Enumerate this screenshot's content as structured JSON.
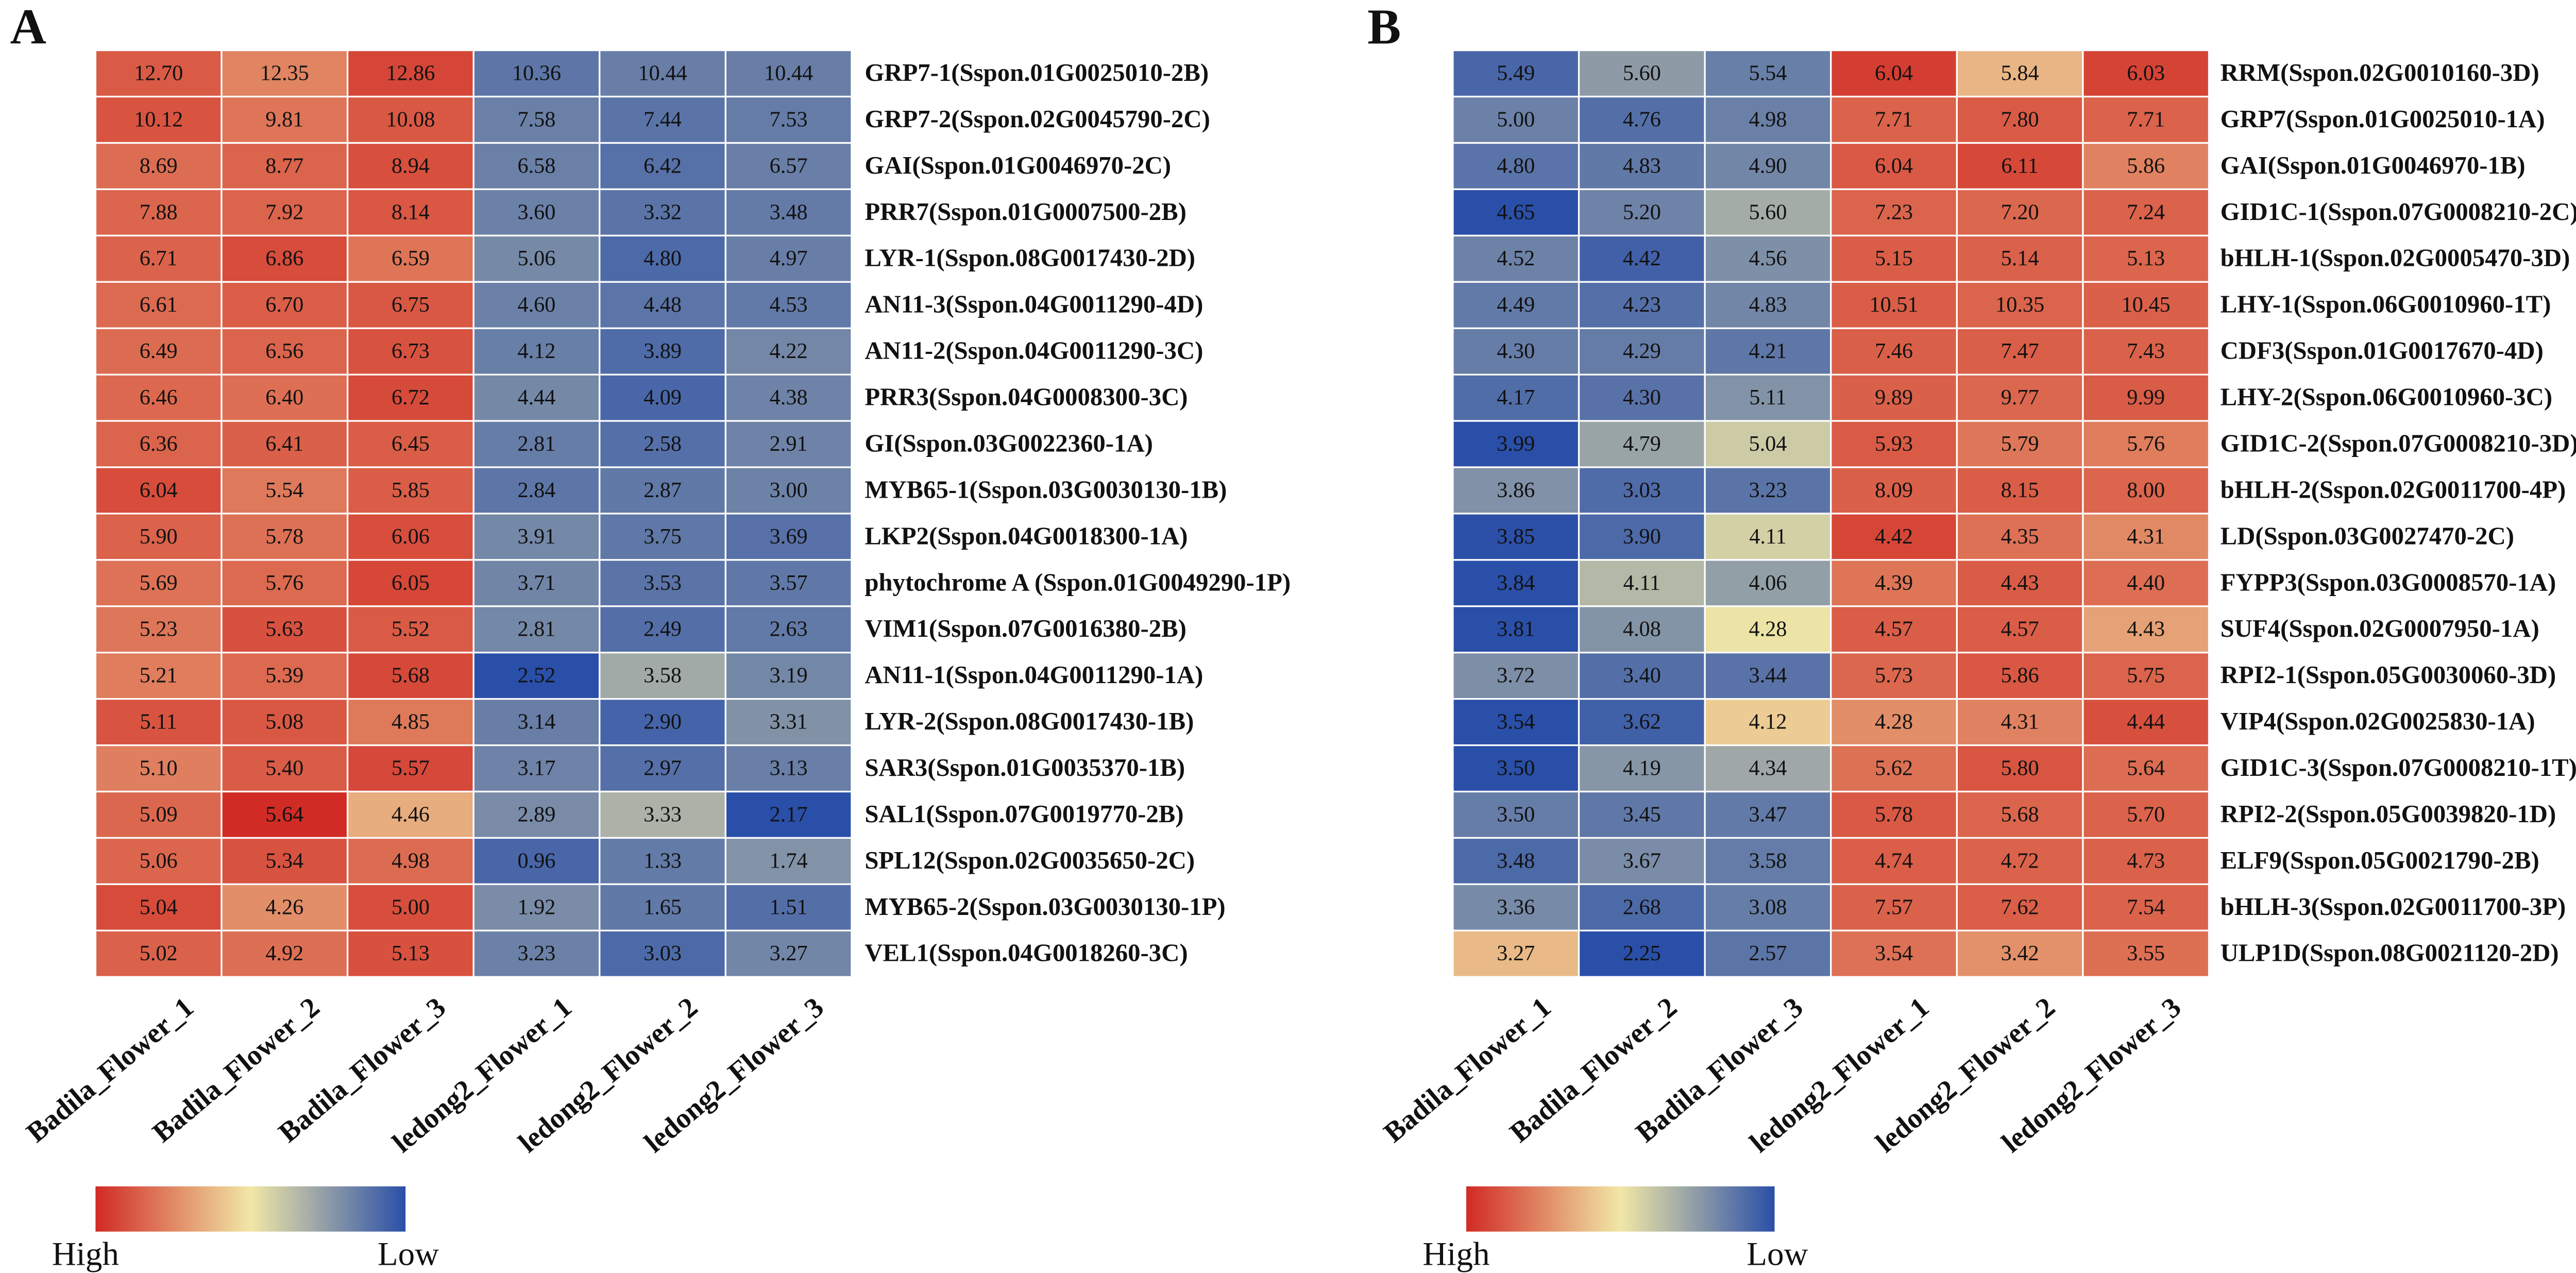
{
  "chart_data": [
    {
      "type": "heatmap",
      "panel_label": "A",
      "columns": [
        "Badila_Flower_1",
        "Badila_Flower_2",
        "Badila_Flower_3",
        "ledong2_Flower_1",
        "ledong2_Flower_2",
        "ledong2_Flower_3"
      ],
      "rows": [
        "GRP7-1(Sspon.01G0025010-2B)",
        "GRP7-2(Sspon.02G0045790-2C)",
        "GAI(Sspon.01G0046970-2C)",
        "PRR7(Sspon.01G0007500-2B)",
        "LYR-1(Sspon.08G0017430-2D)",
        "AN11-3(Sspon.04G0011290-4D)",
        "AN11-2(Sspon.04G0011290-3C)",
        "PRR3(Sspon.04G0008300-3C)",
        "GI(Sspon.03G0022360-1A)",
        "MYB65-1(Sspon.03G0030130-1B)",
        "LKP2(Sspon.04G0018300-1A)",
        "phytochrome A (Sspon.01G0049290-1P)",
        "VIM1(Sspon.07G0016380-2B)",
        "AN11-1(Sspon.04G0011290-1A)",
        "LYR-2(Sspon.08G0017430-1B)",
        "SAR3(Sspon.01G0035370-1B)",
        "SAL1(Sspon.07G0019770-2B)",
        "SPL12(Sspon.02G0035650-2C)",
        "MYB65-2(Sspon.03G0030130-1P)",
        "VEL1(Sspon.04G0018260-3C)"
      ],
      "values": [
        [
          12.7,
          12.35,
          12.86,
          10.36,
          10.44,
          10.44
        ],
        [
          10.12,
          9.81,
          10.08,
          7.58,
          7.44,
          7.53
        ],
        [
          8.69,
          8.77,
          8.94,
          6.58,
          6.42,
          6.57
        ],
        [
          7.88,
          7.92,
          8.14,
          3.6,
          3.32,
          3.48
        ],
        [
          6.71,
          6.86,
          6.59,
          5.06,
          4.8,
          4.97
        ],
        [
          6.61,
          6.7,
          6.75,
          4.6,
          4.48,
          4.53
        ],
        [
          6.49,
          6.56,
          6.73,
          4.12,
          3.89,
          4.22
        ],
        [
          6.46,
          6.4,
          6.72,
          4.44,
          4.09,
          4.38
        ],
        [
          6.36,
          6.41,
          6.45,
          2.81,
          2.58,
          2.91
        ],
        [
          6.04,
          5.54,
          5.85,
          2.84,
          2.87,
          3
        ],
        [
          5.9,
          5.78,
          6.06,
          3.91,
          3.75,
          3.69
        ],
        [
          5.69,
          5.76,
          6.05,
          3.71,
          3.53,
          3.57
        ],
        [
          5.23,
          5.63,
          5.52,
          2.81,
          2.49,
          2.63
        ],
        [
          5.21,
          5.39,
          5.68,
          2.52,
          3.58,
          3.19
        ],
        [
          5.11,
          5.08,
          4.85,
          3.14,
          2.9,
          3.31
        ],
        [
          5.1,
          5.4,
          5.57,
          3.17,
          2.97,
          3.13
        ],
        [
          5.09,
          5.64,
          4.46,
          2.89,
          3.33,
          2.17
        ],
        [
          5.06,
          5.34,
          4.98,
          0.96,
          1.33,
          1.74
        ],
        [
          5.04,
          4.26,
          5,
          1.92,
          1.65,
          1.51
        ],
        [
          5.02,
          4.92,
          5.13,
          3.23,
          3.03,
          3.27
        ]
      ],
      "value_labels": [
        [
          "12.70",
          "12.35",
          "12.86",
          "10.36",
          "10.44",
          "10.44"
        ],
        [
          "10.12",
          "9.81",
          "10.08",
          "7.58",
          "7.44",
          "7.53"
        ],
        [
          "8.69",
          "8.77",
          "8.94",
          "6.58",
          "6.42",
          "6.57"
        ],
        [
          "7.88",
          "7.92",
          "8.14",
          "3.60",
          "3.32",
          "3.48"
        ],
        [
          "6.71",
          "6.86",
          "6.59",
          "5.06",
          "4.80",
          "4.97"
        ],
        [
          "6.61",
          "6.70",
          "6.75",
          "4.60",
          "4.48",
          "4.53"
        ],
        [
          "6.49",
          "6.56",
          "6.73",
          "4.12",
          "3.89",
          "4.22"
        ],
        [
          "6.46",
          "6.40",
          "6.72",
          "4.44",
          "4.09",
          "4.38"
        ],
        [
          "6.36",
          "6.41",
          "6.45",
          "2.81",
          "2.58",
          "2.91"
        ],
        [
          "6.04",
          "5.54",
          "5.85",
          "2.84",
          "2.87",
          "3.00"
        ],
        [
          "5.90",
          "5.78",
          "6.06",
          "3.91",
          "3.75",
          "3.69"
        ],
        [
          "5.69",
          "5.76",
          "6.05",
          "3.71",
          "3.53",
          "3.57"
        ],
        [
          "5.23",
          "5.63",
          "5.52",
          "2.81",
          "2.49",
          "2.63"
        ],
        [
          "5.21",
          "5.39",
          "5.68",
          "2.52",
          "3.58",
          "3.19"
        ],
        [
          "5.11",
          "5.08",
          "4.85",
          "3.14",
          "2.90",
          "3.31"
        ],
        [
          "5.10",
          "5.40",
          "5.57",
          "3.17",
          "2.97",
          "3.13"
        ],
        [
          "5.09",
          "5.64",
          "4.46",
          "2.89",
          "3.33",
          "2.17"
        ],
        [
          "5.06",
          "5.34",
          "4.98",
          "0.96",
          "1.33",
          "1.74"
        ],
        [
          "5.04",
          "4.26",
          "5.00",
          "1.92",
          "1.65",
          "1.51"
        ],
        [
          "5.02",
          "4.92",
          "5.13",
          "3.23",
          "3.03",
          "3.27"
        ]
      ],
      "colormap": [
        "#d12a24",
        "#f1e7a6",
        "#2a4fa8"
      ],
      "colorbar_high": "High",
      "colorbar_low": "Low"
    },
    {
      "type": "heatmap",
      "panel_label": "B",
      "columns": [
        "Badila_Flower_1",
        "Badila_Flower_2",
        "Badila_Flower_3",
        "ledong2_Flower_1",
        "ledong2_Flower_2",
        "ledong2_Flower_3"
      ],
      "rows": [
        "RRM(Sspon.02G0010160-3D)",
        "GRP7(Sspon.01G0025010-1A)",
        "GAI(Sspon.01G0046970-1B)",
        "GID1C-1(Sspon.07G0008210-2C)",
        "bHLH-1(Sspon.02G0005470-3D)",
        "LHY-1(Sspon.06G0010960-1T)",
        "CDF3(Sspon.01G0017670-4D)",
        "LHY-2(Sspon.06G0010960-3C)",
        "GID1C-2(Sspon.07G0008210-3D)",
        "bHLH-2(Sspon.02G0011700-4P)",
        "LD(Sspon.03G0027470-2C)",
        "FYPP3(Sspon.03G0008570-1A)",
        "SUF4(Sspon.02G0007950-1A)",
        "RPI2-1(Sspon.05G0030060-3D)",
        "VIP4(Sspon.02G0025830-1A)",
        "GID1C-3(Sspon.07G0008210-1T)",
        "RPI2-2(Sspon.05G0039820-1D)",
        "ELF9(Sspon.05G0021790-2B)",
        "bHLH-3(Sspon.02G0011700-3P)",
        "ULP1D(Sspon.08G0021120-2D)"
      ],
      "values": [
        [
          5.49,
          5.6,
          5.54,
          6.04,
          5.84,
          6.03
        ],
        [
          5,
          4.76,
          4.98,
          7.71,
          7.8,
          7.71
        ],
        [
          4.8,
          4.83,
          4.9,
          6.04,
          6.11,
          5.86
        ],
        [
          4.65,
          5.2,
          5.6,
          7.23,
          7.2,
          7.24
        ],
        [
          4.52,
          4.42,
          4.56,
          5.15,
          5.14,
          5.13
        ],
        [
          4.49,
          4.23,
          4.83,
          10.51,
          10.35,
          10.45
        ],
        [
          4.3,
          4.29,
          4.21,
          7.46,
          7.47,
          7.43
        ],
        [
          4.17,
          4.3,
          5.11,
          9.89,
          9.77,
          9.99
        ],
        [
          3.99,
          4.79,
          5.04,
          5.93,
          5.79,
          5.76
        ],
        [
          3.86,
          3.03,
          3.23,
          8.09,
          8.15,
          8
        ],
        [
          3.85,
          3.9,
          4.11,
          4.42,
          4.35,
          4.31
        ],
        [
          3.84,
          4.11,
          4.06,
          4.39,
          4.43,
          4.4
        ],
        [
          3.81,
          4.08,
          4.28,
          4.57,
          4.57,
          4.43
        ],
        [
          3.72,
          3.4,
          3.44,
          5.73,
          5.86,
          5.75
        ],
        [
          3.54,
          3.62,
          4.12,
          4.28,
          4.31,
          4.44
        ],
        [
          3.5,
          4.19,
          4.34,
          5.62,
          5.8,
          5.64
        ],
        [
          3.5,
          3.45,
          3.47,
          5.78,
          5.68,
          5.7
        ],
        [
          3.48,
          3.67,
          3.58,
          4.74,
          4.72,
          4.73
        ],
        [
          3.36,
          2.68,
          3.08,
          7.57,
          7.62,
          7.54
        ],
        [
          3.27,
          2.25,
          2.57,
          3.54,
          3.42,
          3.55
        ]
      ],
      "value_labels": [
        [
          "5.49",
          "5.60",
          "5.54",
          "6.04",
          "5.84",
          "6.03"
        ],
        [
          "5.00",
          "4.76",
          "4.98",
          "7.71",
          "7.80",
          "7.71"
        ],
        [
          "4.80",
          "4.83",
          "4.90",
          "6.04",
          "6.11",
          "5.86"
        ],
        [
          "4.65",
          "5.20",
          "5.60",
          "7.23",
          "7.20",
          "7.24"
        ],
        [
          "4.52",
          "4.42",
          "4.56",
          "5.15",
          "5.14",
          "5.13"
        ],
        [
          "4.49",
          "4.23",
          "4.83",
          "10.51",
          "10.35",
          "10.45"
        ],
        [
          "4.30",
          "4.29",
          "4.21",
          "7.46",
          "7.47",
          "7.43"
        ],
        [
          "4.17",
          "4.30",
          "5.11",
          "9.89",
          "9.77",
          "9.99"
        ],
        [
          "3.99",
          "4.79",
          "5.04",
          "5.93",
          "5.79",
          "5.76"
        ],
        [
          "3.86",
          "3.03",
          "3.23",
          "8.09",
          "8.15",
          "8.00"
        ],
        [
          "3.85",
          "3.90",
          "4.11",
          "4.42",
          "4.35",
          "4.31"
        ],
        [
          "3.84",
          "4.11",
          "4.06",
          "4.39",
          "4.43",
          "4.40"
        ],
        [
          "3.81",
          "4.08",
          "4.28",
          "4.57",
          "4.57",
          "4.43"
        ],
        [
          "3.72",
          "3.40",
          "3.44",
          "5.73",
          "5.86",
          "5.75"
        ],
        [
          "3.54",
          "3.62",
          "4.12",
          "4.28",
          "4.31",
          "4.44"
        ],
        [
          "3.50",
          "4.19",
          "4.34",
          "5.62",
          "5.80",
          "5.64"
        ],
        [
          "3.50",
          "3.45",
          "3.47",
          "5.78",
          "5.68",
          "5.70"
        ],
        [
          "3.48",
          "3.67",
          "3.58",
          "4.74",
          "4.72",
          "4.73"
        ],
        [
          "3.36",
          "2.68",
          "3.08",
          "7.57",
          "7.62",
          "7.54"
        ],
        [
          "3.27",
          "2.25",
          "2.57",
          "3.54",
          "3.42",
          "3.55"
        ]
      ],
      "colormap": [
        "#d12a24",
        "#f1e7a6",
        "#2a4fa8"
      ],
      "colorbar_high": "High",
      "colorbar_low": "Low"
    }
  ]
}
